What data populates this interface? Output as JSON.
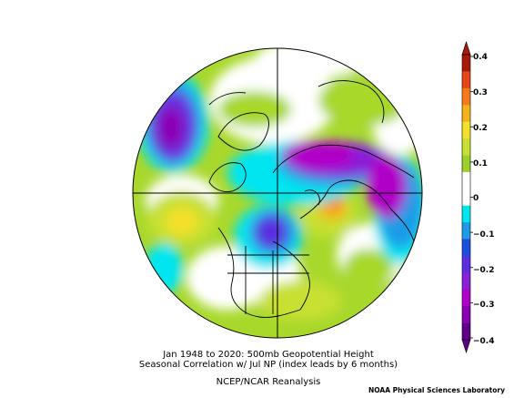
{
  "map": {
    "projection": "north-polar-stereographic",
    "field": "correlation",
    "colors": {
      "background": "#ffffff",
      "deep_purple": "#8b00b5",
      "purple": "#b000c8",
      "violet": "#6a2de0",
      "blue": "#1b4fe0",
      "light_blue": "#1e9be6",
      "cyan": "#00e5f0",
      "white": "#ffffff",
      "lime": "#a8d82c",
      "green_yellow": "#d4e63a",
      "yellow": "#f5e02a",
      "orange": "#f59a1a",
      "red_orange": "#e8461a",
      "dark_red": "#a8180a"
    }
  },
  "colorbar": {
    "ticks": [
      "0.4",
      "0.3",
      "0.2",
      "0.1",
      "0",
      "−0.1",
      "−0.2",
      "−0.3",
      "−0.4"
    ],
    "bins": [
      "#a8180a",
      "#e8461a",
      "#f57a1a",
      "#f5b21a",
      "#f5e02a",
      "#c8e030",
      "#9cd12c",
      "#ffffff",
      "#ffffff",
      "#00e5f0",
      "#1e9be6",
      "#1b4fe0",
      "#5a2de0",
      "#8b1fd8",
      "#b000c8",
      "#8b00b5",
      "#600088"
    ]
  },
  "caption": {
    "line1": "Jan 1948 to 2020: 500mb Geopotential Height",
    "line2": "Seasonal Correlation w/ Jul NP (index leads by 6 months)",
    "line3": "NCEP/NCAR Reanalysis"
  },
  "credit": "NOAA Physical Sciences Laboratory"
}
